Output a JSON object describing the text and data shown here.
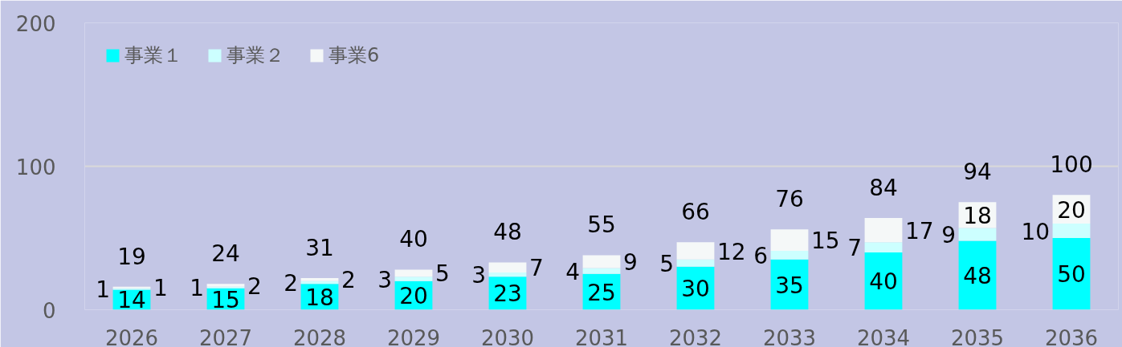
{
  "chart_data": {
    "type": "bar",
    "stacked": true,
    "categories": [
      "2026",
      "2027",
      "2028",
      "2029",
      "2030",
      "2031",
      "2032",
      "2033",
      "2034",
      "2035",
      "2036"
    ],
    "series": [
      {
        "name": "事業１",
        "color": "#00ffff",
        "values": [
          14,
          15,
          18,
          20,
          23,
          25,
          30,
          35,
          40,
          48,
          50
        ]
      },
      {
        "name": "事業２",
        "color": "#ccffff",
        "values": [
          1,
          1,
          2,
          3,
          3,
          4,
          5,
          6,
          7,
          9,
          10
        ]
      },
      {
        "name": "事業6",
        "color": "#f5f8f8",
        "values": [
          1,
          2,
          2,
          5,
          7,
          9,
          12,
          15,
          17,
          18,
          20
        ]
      }
    ],
    "annotations": [
      "19",
      "24",
      "31",
      "40",
      "48",
      "55",
      "66",
      "76",
      "84",
      "94",
      "100"
    ],
    "ylim": [
      0,
      200
    ],
    "yticks": [
      0,
      100,
      200
    ],
    "grid": "y",
    "legend": "top left",
    "data_labels": true
  }
}
